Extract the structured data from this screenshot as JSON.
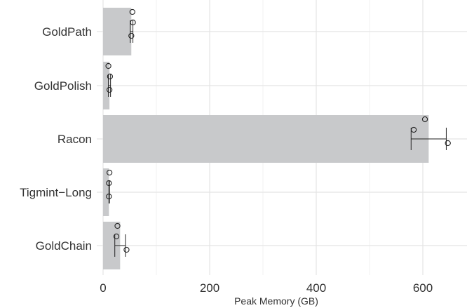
{
  "chart_data": {
    "type": "bar",
    "orientation": "horizontal",
    "title": "",
    "xlabel": "Peak Memory (GB)",
    "ylabel": "",
    "xlim": [
      0,
      660
    ],
    "xticks": [
      0,
      200,
      400,
      600
    ],
    "grid": true,
    "bar_color": "#c8c9cb",
    "point_color": "#222222",
    "categories": [
      "GoldPath",
      "GoldPolish",
      "Racon",
      "Tigmint−Long",
      "GoldChain"
    ],
    "values": [
      53,
      12,
      611,
      11,
      32
    ],
    "points": [
      [
        55,
        56,
        53
      ],
      [
        10,
        13,
        12
      ],
      [
        604,
        583,
        647
      ],
      [
        12,
        11,
        11
      ],
      [
        27,
        25,
        44
      ]
    ],
    "error": [
      [
        51,
        56
      ],
      [
        10,
        14
      ],
      [
        578,
        644
      ],
      [
        11,
        12
      ],
      [
        22,
        42
      ]
    ]
  }
}
